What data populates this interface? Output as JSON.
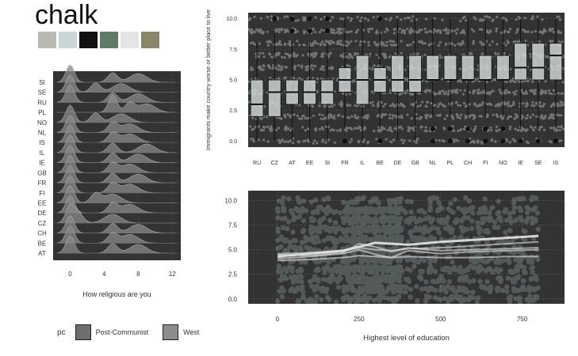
{
  "theme_title": "chalk",
  "palette": [
    "#b9bbb3",
    "#cbd4d7",
    "#111111",
    "#5e7b63",
    "#e5e5e3",
    "#8a8667"
  ],
  "colors": {
    "panel_bg": "#333333",
    "ridge_fill": "#8a8a88",
    "box_fill": "#cdd3d3",
    "jitter": "#b0b5b2",
    "smooth": "#e6e6e6"
  },
  "chart_data": [
    {
      "id": "ridges",
      "type": "area",
      "xlabel": "How religious are you",
      "ylabel": "",
      "xlim": [
        -2,
        13
      ],
      "x_ticks": [
        0,
        4,
        8,
        12
      ],
      "categories": [
        "SI",
        "SE",
        "RU",
        "PL",
        "NO",
        "NL",
        "IS",
        "IL",
        "IE",
        "GB",
        "FR",
        "FI",
        "EE",
        "DE",
        "CZ",
        "CH",
        "BE",
        "AT"
      ],
      "density_peaks": [
        {
          "country": "SI",
          "peaks": [
            0,
            5,
            8
          ]
        },
        {
          "country": "SE",
          "peaks": [
            0,
            3,
            6
          ]
        },
        {
          "country": "RU",
          "peaks": [
            0,
            5,
            8
          ]
        },
        {
          "country": "PL",
          "peaks": [
            5,
            7,
            9
          ]
        },
        {
          "country": "NO",
          "peaks": [
            0,
            3,
            6
          ]
        },
        {
          "country": "NL",
          "peaks": [
            0,
            5,
            7
          ]
        },
        {
          "country": "IS",
          "peaks": [
            0,
            5,
            7
          ]
        },
        {
          "country": "IL",
          "peaks": [
            0,
            5,
            9
          ]
        },
        {
          "country": "IE",
          "peaks": [
            0,
            5,
            8
          ]
        },
        {
          "country": "GB",
          "peaks": [
            0,
            5,
            7
          ]
        },
        {
          "country": "FR",
          "peaks": [
            0,
            5,
            8
          ]
        },
        {
          "country": "FI",
          "peaks": [
            0,
            5,
            7
          ]
        },
        {
          "country": "EE",
          "peaks": [
            0,
            3,
            5
          ]
        },
        {
          "country": "DE",
          "peaks": [
            0,
            5,
            7
          ]
        },
        {
          "country": "CZ",
          "peaks": [
            0,
            1,
            5
          ]
        },
        {
          "country": "CH",
          "peaks": [
            0,
            5,
            8
          ]
        },
        {
          "country": "BE",
          "peaks": [
            0,
            5,
            7
          ]
        },
        {
          "country": "AT",
          "peaks": [
            0,
            5,
            8
          ]
        }
      ]
    },
    {
      "id": "boxplot",
      "type": "box",
      "xlabel": "",
      "ylabel": "Immigrants make country worse or better place to live",
      "ylim": [
        -0.5,
        10.5
      ],
      "y_ticks": [
        0.0,
        2.5,
        5.0,
        7.5,
        10.0
      ],
      "y_tick_labels": [
        "0.0",
        "2.5",
        "5.0",
        "7.5",
        "10.0"
      ],
      "categories": [
        "RU",
        "CZ",
        "AT",
        "EE",
        "SI",
        "FR",
        "IL",
        "BE",
        "DE",
        "GB",
        "NL",
        "PL",
        "CH",
        "FI",
        "NO",
        "IE",
        "SE",
        "IS"
      ],
      "boxes": [
        {
          "country": "RU",
          "q1": 2,
          "median": 3,
          "q3": 5,
          "whisker_low": 0,
          "whisker_high": 8,
          "outliers": []
        },
        {
          "country": "CZ",
          "q1": 2,
          "median": 4,
          "q3": 5,
          "whisker_low": 0,
          "whisker_high": 9,
          "outliers": [
            10
          ]
        },
        {
          "country": "AT",
          "q1": 3,
          "median": 4,
          "q3": 5,
          "whisker_low": 0,
          "whisker_high": 8,
          "outliers": [
            9,
            10
          ]
        },
        {
          "country": "EE",
          "q1": 3,
          "median": 4,
          "q3": 5,
          "whisker_low": 0,
          "whisker_high": 8,
          "outliers": [
            9,
            10
          ]
        },
        {
          "country": "SI",
          "q1": 3,
          "median": 4,
          "q3": 5,
          "whisker_low": 0,
          "whisker_high": 8,
          "outliers": [
            9,
            10
          ]
        },
        {
          "country": "FR",
          "q1": 4,
          "median": 5,
          "q3": 6,
          "whisker_low": 1,
          "whisker_high": 10,
          "outliers": [
            0
          ]
        },
        {
          "country": "IL",
          "q1": 3,
          "median": 5,
          "q3": 7,
          "whisker_low": 0,
          "whisker_high": 10,
          "outliers": []
        },
        {
          "country": "BE",
          "q1": 4,
          "median": 5,
          "q3": 6,
          "whisker_low": 1,
          "whisker_high": 9,
          "outliers": [
            0,
            10
          ]
        },
        {
          "country": "DE",
          "q1": 4,
          "median": 5,
          "q3": 7,
          "whisker_low": 0,
          "whisker_high": 10,
          "outliers": []
        },
        {
          "country": "GB",
          "q1": 4,
          "median": 5,
          "q3": 7,
          "whisker_low": 0,
          "whisker_high": 10,
          "outliers": []
        },
        {
          "country": "NL",
          "q1": 5,
          "median": 5,
          "q3": 7,
          "whisker_low": 2,
          "whisker_high": 10,
          "outliers": [
            0,
            1
          ]
        },
        {
          "country": "PL",
          "q1": 5,
          "median": 5,
          "q3": 7,
          "whisker_low": 2,
          "whisker_high": 10,
          "outliers": [
            0,
            1
          ]
        },
        {
          "country": "CH",
          "q1": 5,
          "median": 5,
          "q3": 7,
          "whisker_low": 2,
          "whisker_high": 10,
          "outliers": [
            0,
            1
          ]
        },
        {
          "country": "FI",
          "q1": 5,
          "median": 5,
          "q3": 7,
          "whisker_low": 2,
          "whisker_high": 10,
          "outliers": [
            0,
            1
          ]
        },
        {
          "country": "NO",
          "q1": 5,
          "median": 5,
          "q3": 7,
          "whisker_low": 2,
          "whisker_high": 10,
          "outliers": [
            0,
            1
          ]
        },
        {
          "country": "IE",
          "q1": 5,
          "median": 6,
          "q3": 8,
          "whisker_low": 1,
          "whisker_high": 10,
          "outliers": [
            0
          ]
        },
        {
          "country": "SE",
          "q1": 5,
          "median": 6,
          "q3": 8,
          "whisker_low": 1,
          "whisker_high": 10,
          "outliers": [
            0
          ]
        },
        {
          "country": "IS",
          "q1": 5,
          "median": 7,
          "q3": 8,
          "whisker_low": 1,
          "whisker_high": 10,
          "outliers": [
            0
          ]
        }
      ]
    },
    {
      "id": "scatter_smooth",
      "type": "scatter",
      "xlabel": "Highest level of education",
      "ylabel": "",
      "xlim": [
        -90,
        880
      ],
      "ylim": [
        -0.5,
        11
      ],
      "x_ticks": [
        0,
        250,
        500,
        750
      ],
      "y_ticks": [
        0.0,
        2.5,
        5.0,
        7.5,
        10.0
      ],
      "y_tick_labels": [
        "0.0",
        "2.5",
        "5.0",
        "7.5",
        "10.0"
      ],
      "point_x_range": [
        0,
        800
      ],
      "point_y_range": [
        0,
        10
      ],
      "series": [
        {
          "x": [
            0,
            100,
            200,
            250,
            300,
            350,
            400,
            500,
            600,
            700,
            800
          ],
          "y": [
            4.3,
            4.6,
            4.9,
            5.3,
            5.7,
            5.6,
            5.5,
            5.8,
            6.0,
            6.2,
            6.4
          ]
        },
        {
          "x": [
            0,
            100,
            200,
            250,
            300,
            350,
            400,
            500,
            600,
            700,
            800
          ],
          "y": [
            4.5,
            4.4,
            4.7,
            5.6,
            5.3,
            4.8,
            5.2,
            4.9,
            5.0,
            5.1,
            5.2
          ]
        },
        {
          "x": [
            0,
            100,
            200,
            250,
            300,
            350,
            400,
            500,
            600,
            700,
            800
          ],
          "y": [
            4.1,
            4.3,
            4.6,
            5.0,
            4.5,
            4.2,
            4.9,
            4.6,
            4.8,
            4.9,
            5.0
          ]
        },
        {
          "x": [
            0,
            100,
            200,
            250,
            300,
            350,
            400,
            500,
            600,
            700,
            800
          ],
          "y": [
            3.9,
            4.0,
            4.2,
            4.4,
            4.3,
            4.2,
            4.3,
            4.2,
            4.2,
            4.3,
            4.3
          ]
        },
        {
          "x": [
            0,
            100,
            200,
            250,
            300,
            350,
            400,
            500,
            600,
            700,
            800
          ],
          "y": [
            4.6,
            4.7,
            4.9,
            5.2,
            5.0,
            4.9,
            5.1,
            5.2,
            5.4,
            5.6,
            5.8
          ]
        }
      ]
    }
  ],
  "legend": {
    "title": "pc",
    "items": [
      {
        "label": "Post-Communist",
        "color": "#6e6e6e"
      },
      {
        "label": "West",
        "color": "#8d8d8d"
      }
    ]
  }
}
